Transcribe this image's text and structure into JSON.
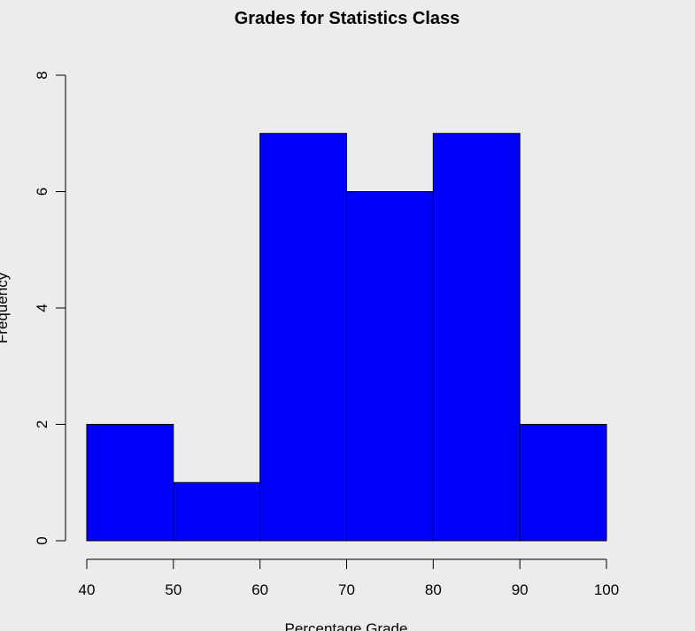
{
  "chart_data": {
    "type": "bar",
    "title": "Grades for Statistics Class",
    "xlabel": "Percentage Grade",
    "ylabel": "Frequency",
    "bins": [
      {
        "start": 40,
        "end": 50,
        "value": 2
      },
      {
        "start": 50,
        "end": 60,
        "value": 1
      },
      {
        "start": 60,
        "end": 70,
        "value": 7
      },
      {
        "start": 70,
        "end": 80,
        "value": 6
      },
      {
        "start": 80,
        "end": 90,
        "value": 7
      },
      {
        "start": 90,
        "end": 100,
        "value": 2
      }
    ],
    "xlim": [
      40,
      100
    ],
    "ylim": [
      0,
      8
    ],
    "x_ticks": [
      40,
      50,
      60,
      70,
      80,
      90,
      100
    ],
    "y_ticks": [
      0,
      2,
      4,
      6,
      8
    ],
    "grid": false,
    "colors": {
      "bar_fill": "#0000ff",
      "bar_stroke": "#000000",
      "background": "#ececec"
    }
  }
}
